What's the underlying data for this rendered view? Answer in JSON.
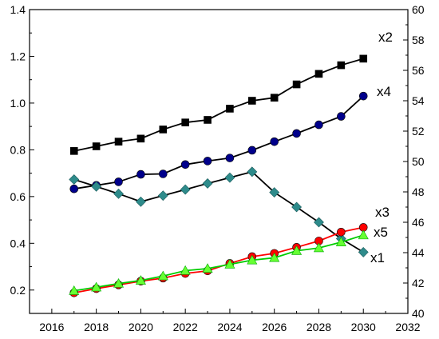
{
  "chart_data": {
    "type": "line",
    "title": "",
    "xlabel": "",
    "ylabel": "",
    "y2label": "",
    "xlim": [
      2015,
      2032
    ],
    "ylim": [
      0.1,
      1.4
    ],
    "y2lim": [
      40,
      60
    ],
    "x_ticks": [
      2016,
      2018,
      2020,
      2022,
      2024,
      2026,
      2028,
      2030,
      2032
    ],
    "y_ticks": [
      0.2,
      0.4,
      0.6,
      0.8,
      1.0,
      1.2,
      1.4
    ],
    "y2_ticks": [
      40,
      42,
      44,
      46,
      48,
      50,
      52,
      54,
      56,
      58,
      60
    ],
    "x_tick_labels": [
      "2016",
      "2018",
      "2020",
      "2022",
      "2024",
      "2026",
      "2028",
      "2030",
      "2032"
    ],
    "y_tick_labels": [
      "0.2",
      "0.4",
      "0.6",
      "0.8",
      "1.0",
      "1.2",
      "1.4"
    ],
    "y2_tick_labels": [
      "40",
      "42",
      "44",
      "46",
      "48",
      "50",
      "52",
      "54",
      "56",
      "58",
      "60"
    ],
    "grid": false,
    "legend": "none",
    "x": [
      2017,
      2018,
      2019,
      2020,
      2021,
      2022,
      2023,
      2024,
      2025,
      2026,
      2027,
      2028,
      2029,
      2030
    ],
    "series": [
      {
        "name": "x2",
        "axis": "left",
        "color": "#000000",
        "marker": "square",
        "values": [
          0.795,
          0.815,
          0.835,
          0.848,
          0.887,
          0.917,
          0.928,
          0.976,
          1.01,
          1.023,
          1.08,
          1.125,
          1.162,
          1.19
        ]
      },
      {
        "name": "x4",
        "axis": "left",
        "color": "#000000",
        "marker": "circle",
        "marker_color": "#00008b",
        "values": [
          0.633,
          0.648,
          0.663,
          0.695,
          0.697,
          0.737,
          0.752,
          0.765,
          0.798,
          0.835,
          0.87,
          0.907,
          0.943,
          1.03
        ]
      },
      {
        "name": "x1",
        "axis": "left",
        "color": "#000000",
        "marker": "diamond",
        "marker_color": "#2e8b8b",
        "values": [
          0.673,
          0.643,
          0.612,
          0.578,
          0.604,
          0.63,
          0.656,
          0.681,
          0.706,
          0.618,
          0.555,
          0.49,
          0.42,
          0.362
        ]
      },
      {
        "name": "x3",
        "axis": "left",
        "color": "#ff0000",
        "marker": "circle",
        "marker_color": "#ff0000",
        "values": [
          0.188,
          0.206,
          0.222,
          0.238,
          0.251,
          0.271,
          0.282,
          0.314,
          0.343,
          0.357,
          0.383,
          0.41,
          0.448,
          0.468
        ]
      },
      {
        "name": "x5",
        "axis": "left",
        "color": "#00cc00",
        "marker": "triangle",
        "marker_color": "#66ff33",
        "values": [
          0.197,
          0.212,
          0.228,
          0.241,
          0.26,
          0.283,
          0.292,
          0.31,
          0.328,
          0.338,
          0.368,
          0.38,
          0.405,
          0.435
        ]
      }
    ]
  }
}
